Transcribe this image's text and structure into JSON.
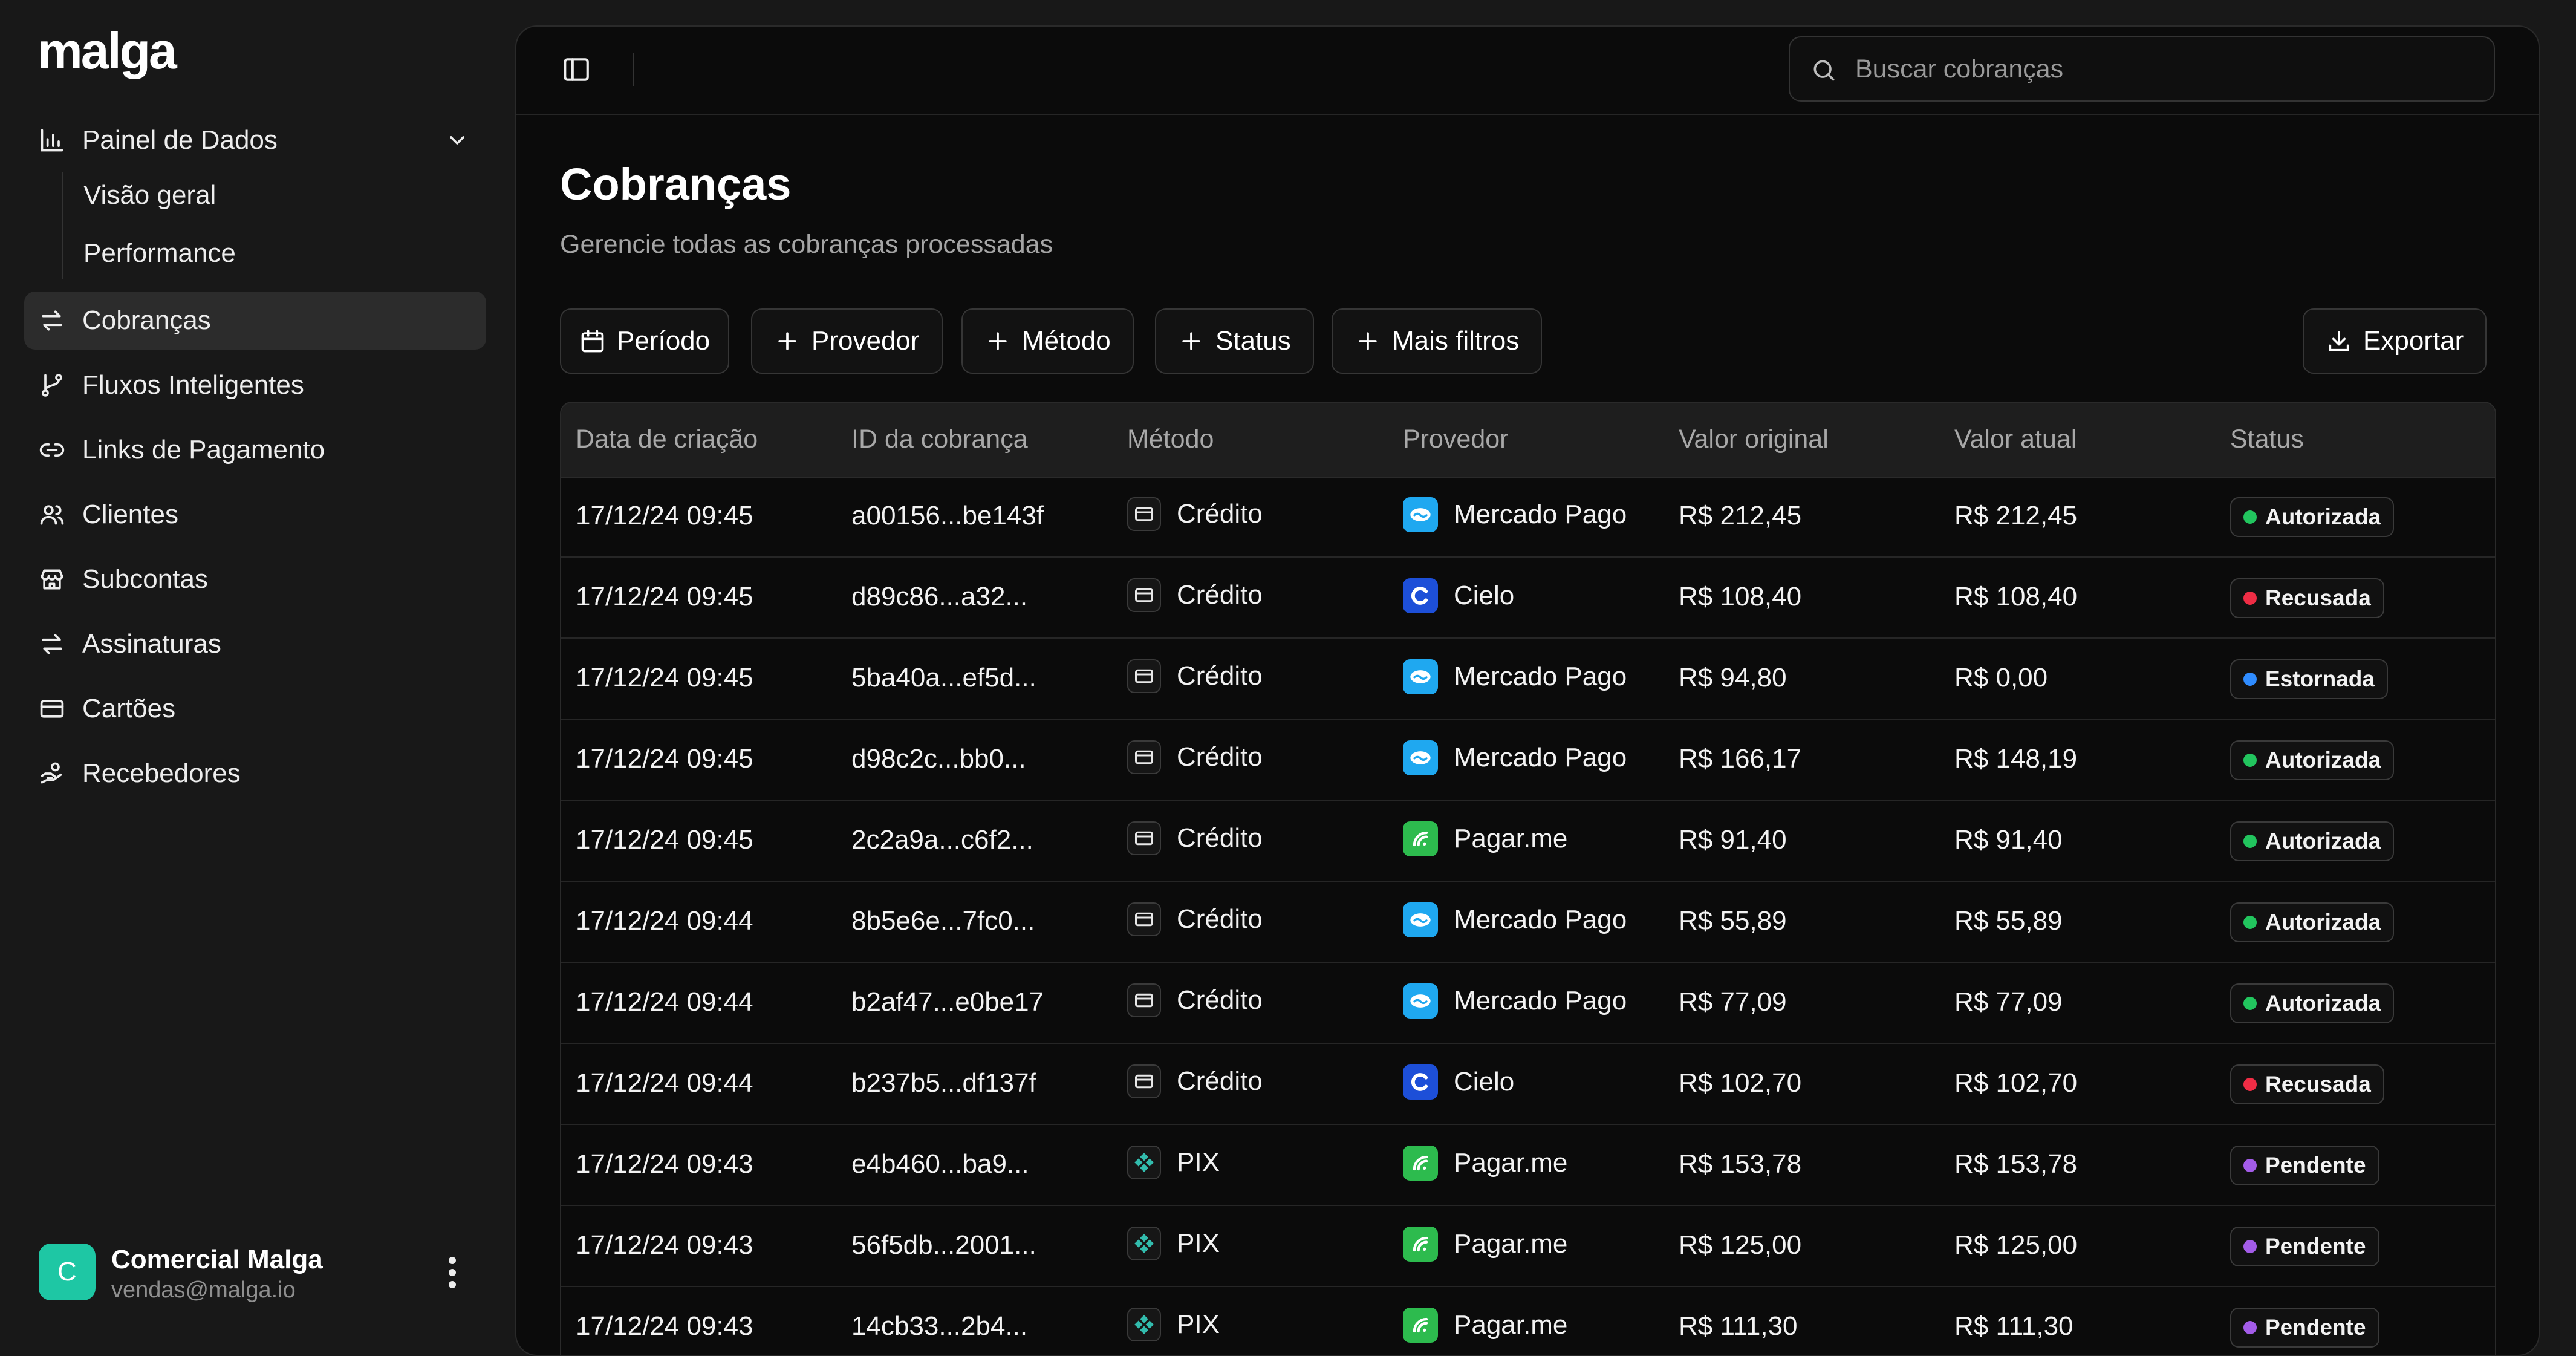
{
  "app": {
    "logo": "malga"
  },
  "sidebar": {
    "dashboard": {
      "label": "Painel de Dados",
      "children": [
        "Visão geral",
        "Performance"
      ]
    },
    "items": [
      {
        "label": "Cobranças",
        "icon": "arrows-exchange-icon",
        "active": true
      },
      {
        "label": "Fluxos Inteligentes",
        "icon": "git-branch-icon"
      },
      {
        "label": "Links de Pagamento",
        "icon": "link-icon"
      },
      {
        "label": "Clientes",
        "icon": "users-icon"
      },
      {
        "label": "Subcontas",
        "icon": "store-icon"
      },
      {
        "label": "Assinaturas",
        "icon": "repeat-icon"
      },
      {
        "label": "Cartões",
        "icon": "credit-card-icon"
      },
      {
        "label": "Recebedores",
        "icon": "hand-coins-icon"
      }
    ],
    "user": {
      "initial": "C",
      "name": "Comercial Malga",
      "email": "vendas@malga.io"
    }
  },
  "header": {
    "search_placeholder": "Buscar cobranças"
  },
  "page": {
    "title": "Cobranças",
    "subtitle": "Gerencie todas as cobranças processadas"
  },
  "filters": {
    "period": "Período",
    "provider": "Provedor",
    "method": "Método",
    "status": "Status",
    "more": "Mais filtros",
    "export": "Exportar"
  },
  "table": {
    "columns": [
      "Data de criação",
      "ID da cobrança",
      "Método",
      "Provedor",
      "Valor original",
      "Valor atual",
      "Status"
    ],
    "rows": [
      {
        "date": "17/12/24 09:45",
        "id": "a00156...be143f",
        "method": "Crédito",
        "provider": "Mercado Pago",
        "original": "R$ 212,45",
        "current": "R$ 212,45",
        "status": "Autorizada"
      },
      {
        "date": "17/12/24 09:45",
        "id": "d89c86...a32...",
        "method": "Crédito",
        "provider": "Cielo",
        "original": "R$ 108,40",
        "current": "R$ 108,40",
        "status": "Recusada"
      },
      {
        "date": "17/12/24 09:45",
        "id": "5ba40a...ef5d...",
        "method": "Crédito",
        "provider": "Mercado Pago",
        "original": "R$ 94,80",
        "current": "R$ 0,00",
        "status": "Estornada"
      },
      {
        "date": "17/12/24 09:45",
        "id": "d98c2c...bb0...",
        "method": "Crédito",
        "provider": "Mercado Pago",
        "original": "R$ 166,17",
        "current": "R$ 148,19",
        "status": "Autorizada"
      },
      {
        "date": "17/12/24 09:45",
        "id": "2c2a9a...c6f2...",
        "method": "Crédito",
        "provider": "Pagar.me",
        "original": "R$ 91,40",
        "current": "R$ 91,40",
        "status": "Autorizada"
      },
      {
        "date": "17/12/24 09:44",
        "id": "8b5e6e...7fc0...",
        "method": "Crédito",
        "provider": "Mercado Pago",
        "original": "R$ 55,89",
        "current": "R$ 55,89",
        "status": "Autorizada"
      },
      {
        "date": "17/12/24 09:44",
        "id": "b2af47...e0be17",
        "method": "Crédito",
        "provider": "Mercado Pago",
        "original": "R$ 77,09",
        "current": "R$ 77,09",
        "status": "Autorizada"
      },
      {
        "date": "17/12/24 09:44",
        "id": "b237b5...df137f",
        "method": "Crédito",
        "provider": "Cielo",
        "original": "R$ 102,70",
        "current": "R$ 102,70",
        "status": "Recusada"
      },
      {
        "date": "17/12/24 09:43",
        "id": "e4b460...ba9...",
        "method": "PIX",
        "provider": "Pagar.me",
        "original": "R$ 153,78",
        "current": "R$ 153,78",
        "status": "Pendente"
      },
      {
        "date": "17/12/24 09:43",
        "id": "56f5db...2001...",
        "method": "PIX",
        "provider": "Pagar.me",
        "original": "R$ 125,00",
        "current": "R$ 125,00",
        "status": "Pendente"
      },
      {
        "date": "17/12/24 09:43",
        "id": "14cb33...2b4...",
        "method": "PIX",
        "provider": "Pagar.me",
        "original": "R$ 111,30",
        "current": "R$ 111,30",
        "status": "Pendente"
      }
    ]
  },
  "colors": {
    "status": {
      "Autorizada": "#22c55e",
      "Recusada": "#ef2d45",
      "Estornada": "#2f8cff",
      "Pendente": "#a35ce8"
    },
    "provider": {
      "Mercado Pago": "#1fa8f0",
      "Cielo": "#1d4fd8",
      "Pagar.me": "#2dbb4e"
    },
    "avatar": "#1ec7a4"
  }
}
